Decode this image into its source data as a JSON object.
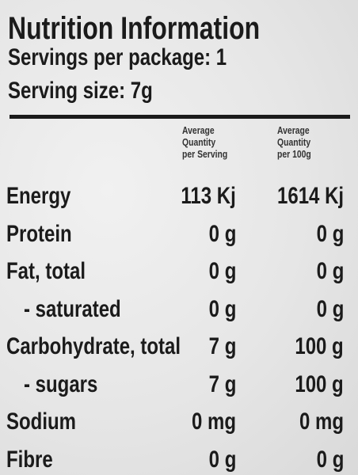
{
  "header": {
    "title": "Nutrition Information",
    "servings_per_package": "Servings per package: 1",
    "serving_size": "Serving size: 7g"
  },
  "table": {
    "columns": [
      [
        "Average",
        "Quantity",
        "per Serving"
      ],
      [
        "Average",
        "Quantity",
        "per 100g"
      ]
    ],
    "rows": [
      [
        "Energy",
        "113 Kj",
        "1614 Kj"
      ],
      [
        "Protein",
        "0 g",
        "0 g"
      ],
      [
        "Fat, total",
        "0 g",
        "0 g"
      ],
      [
        "- saturated",
        "0 g",
        "0 g"
      ],
      [
        "Carbohydrate, total",
        "7 g",
        "100 g"
      ],
      [
        "- sugars",
        "7 g",
        "100 g"
      ],
      [
        "Sodium",
        "0 mg",
        "0 mg"
      ],
      [
        "Fibre",
        "0 g",
        "0 g"
      ]
    ]
  }
}
